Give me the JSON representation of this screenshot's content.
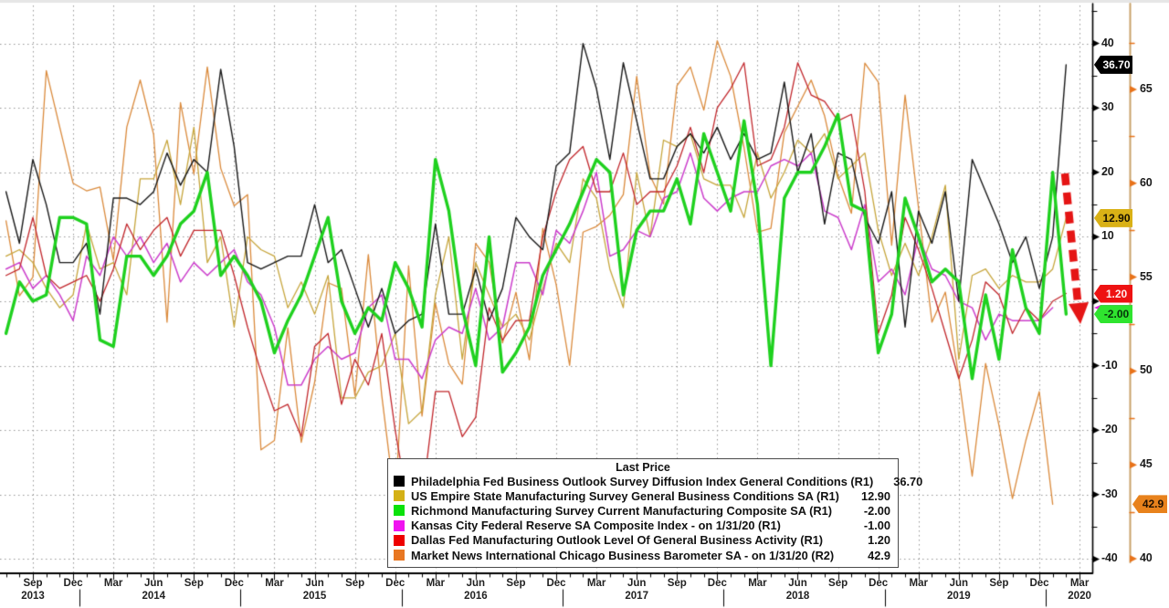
{
  "chart_data": {
    "type": "line",
    "x_start_month": "2013-07",
    "x_tick_labels": [
      "Sep",
      "Dec",
      "Mar",
      "Jun",
      "Sep",
      "Dec",
      "Mar",
      "Jun",
      "Sep",
      "Dec",
      "Mar",
      "Jun",
      "Sep",
      "Dec",
      "Mar",
      "Jun",
      "Sep",
      "Dec",
      "Mar",
      "Jun",
      "Sep",
      "Dec",
      "Mar",
      "Jun",
      "Sep",
      "Dec",
      "Mar"
    ],
    "year_labels": [
      {
        "label": "2013",
        "tick_index": 0
      },
      {
        "label": "2014",
        "tick_index": 3
      },
      {
        "label": "2015",
        "tick_index": 7
      },
      {
        "label": "2016",
        "tick_index": 11
      },
      {
        "label": "2017",
        "tick_index": 15
      },
      {
        "label": "2018",
        "tick_index": 19
      },
      {
        "label": "2019",
        "tick_index": 23
      },
      {
        "label": "2020",
        "tick_index": 26
      }
    ],
    "year_separator_tick_indices": [
      1,
      5,
      9,
      13,
      17,
      21,
      25
    ],
    "axis_r1": {
      "side": "right",
      "ticks": [
        40,
        30,
        20,
        10,
        -10,
        -20,
        -30,
        -40
      ],
      "minor_step": 5,
      "range": [
        -45,
        46
      ],
      "grid_values": [
        40,
        30,
        20,
        10,
        0,
        -10,
        -20,
        -30,
        -40
      ]
    },
    "axis_r2": {
      "side": "far-right",
      "ticks": [
        65,
        60,
        55,
        50,
        45,
        40
      ],
      "minor_step": 2.5,
      "range": [
        40,
        69.7
      ],
      "tick_color": "#e8731a",
      "line_color": "#c9a36b"
    },
    "legend": {
      "title": "Last Price",
      "entries": [
        {
          "label": "Philadelphia Fed Business Outlook Survey Diffusion Index General Conditions  (R1)",
          "value": "36.70",
          "swatch": "#000000"
        },
        {
          "label": "US Empire State Manufacturing Survey General Business Conditions SA  (R1)",
          "value": "12.90",
          "swatch": "#d4b116"
        },
        {
          "label": "Richmond Manufacturing Survey Current Manufacturing Composite SA  (R1)",
          "value": "-2.00",
          "swatch": "#0ae20a"
        },
        {
          "label": "Kansas City Federal Reserve SA Composite Index -  on 1/31/20  (R1)",
          "value": "-1.00",
          "swatch": "#f012f0"
        },
        {
          "label": "Dallas Fed Manufacturing Outlook Level Of General Business Activity  (R1)",
          "value": "1.20",
          "swatch": "#ee0000"
        },
        {
          "label": "Market News International Chicago Business Barometer SA -  on 1/31/20  (R2)",
          "value": "42.9",
          "swatch": "#e87722"
        }
      ]
    },
    "price_tags": [
      {
        "text": "36.70",
        "value": 36.7,
        "axis": "R1",
        "bg": "#000000",
        "fg": "#ffffff"
      },
      {
        "text": "12.90",
        "value": 12.9,
        "axis": "R1",
        "bg": "#d9b116",
        "fg": "#171000"
      },
      {
        "text": "1.20",
        "value": 1.2,
        "axis": "R1",
        "bg": "#ee1212",
        "fg": "#ffecec"
      },
      {
        "text": "",
        "value": -1.0,
        "axis": "R1",
        "bg": "#e428e4",
        "fg": "#ffffff",
        "strip": true
      },
      {
        "text": "-2.00",
        "value": -2.0,
        "axis": "R1",
        "bg": "#2fe42f",
        "fg": "#06340a"
      },
      {
        "text": "42.9",
        "value": 42.9,
        "axis": "R2",
        "bg": "#e8821c",
        "fg": "#201000"
      }
    ],
    "annotation_arrow": {
      "color": "#e51515",
      "style": "dashed",
      "from_xy": [
        1166,
        190
      ],
      "to_xy": [
        1183,
        355
      ],
      "meaning": "sharp drop expected"
    },
    "series": [
      {
        "name": "Philadelphia Fed Business Outlook (R1)",
        "color": "#1a1a1a",
        "width": 1.4,
        "axis": "R1",
        "last": 36.7,
        "values": [
          17,
          9,
          22,
          15,
          6,
          6,
          9,
          -2,
          16,
          16,
          15,
          17,
          23,
          18,
          22,
          20,
          36,
          24,
          6,
          5,
          6,
          7,
          7,
          15,
          6,
          8,
          2,
          -4,
          2,
          -5,
          -3,
          -2,
          12,
          -2,
          -2,
          5,
          -3,
          2,
          13,
          10,
          8,
          21,
          23,
          40,
          33,
          22,
          37,
          28,
          19,
          19,
          24,
          26,
          23,
          27,
          22,
          26,
          22,
          23,
          34,
          20,
          26,
          12,
          23,
          22,
          13,
          9,
          17,
          -4,
          14,
          9,
          17,
          0,
          22,
          17,
          12,
          6,
          10,
          2,
          10,
          36.7,
          null
        ]
      },
      {
        "name": "US Empire State Manufacturing (R1)",
        "color": "#c7a63d",
        "width": 1.3,
        "axis": "R1",
        "last": 12.9,
        "values": [
          7,
          8,
          6,
          2,
          -1,
          1,
          12,
          5,
          6,
          1,
          19,
          19,
          25,
          15,
          27,
          6,
          10,
          -4,
          10,
          8,
          7,
          -1,
          3,
          -2,
          4,
          -15,
          -15,
          -11,
          -10,
          -5,
          -19,
          -17,
          1,
          10,
          -9,
          6,
          1,
          -4,
          -2,
          -6,
          2,
          9,
          6,
          19,
          16,
          5,
          -1,
          20,
          10,
          25,
          24,
          26,
          19,
          18,
          18,
          13,
          23,
          16,
          20,
          25,
          23,
          26,
          19,
          21,
          23,
          11,
          4,
          9,
          4,
          10,
          18,
          -9,
          4,
          5,
          2,
          4,
          3,
          3,
          5,
          12.9,
          null
        ]
      },
      {
        "name": "Kansas City Federal Reserve (R1)",
        "color": "#cc3fcc",
        "width": 1.5,
        "axis": "R1",
        "last": -1.0,
        "values": [
          5,
          6,
          2,
          4,
          1,
          -3,
          7,
          4,
          10,
          7,
          10,
          6,
          9,
          3,
          6,
          4,
          6,
          8,
          3,
          1,
          -4,
          -13,
          -13,
          -9,
          -7,
          -9,
          -8,
          -1,
          1,
          -9,
          -9,
          -12,
          -6,
          -4,
          -5,
          2,
          -6,
          -4,
          6,
          6,
          1,
          11,
          9,
          14,
          20,
          7,
          8,
          11,
          10,
          16,
          17,
          23,
          16,
          14,
          16,
          17,
          17,
          21,
          22,
          21,
          23,
          14,
          13,
          8,
          15,
          3,
          5,
          1,
          10,
          5,
          4,
          0,
          -1,
          -6,
          -2,
          -3,
          -3,
          -3,
          -1,
          null,
          null
        ]
      },
      {
        "name": "Dallas Fed Manufacturing Outlook (R1)",
        "color": "#c2282d",
        "width": 1.3,
        "axis": "R1",
        "last": 1.2,
        "values": [
          4,
          5,
          13,
          4,
          2,
          3,
          4,
          0,
          5,
          12,
          8,
          11,
          13,
          7,
          11,
          11,
          11,
          4,
          -4,
          -11,
          -17,
          -16,
          -21,
          -7,
          -5,
          -16,
          -9,
          -13,
          -5,
          -20,
          -32,
          -31,
          -14,
          -14,
          -21,
          -18,
          -1,
          -6,
          -3,
          -3,
          10,
          17,
          22,
          24,
          17,
          17,
          23,
          15,
          17,
          17,
          21,
          27,
          20,
          30,
          33,
          37,
          21,
          22,
          27,
          37,
          32,
          31,
          28,
          29,
          17,
          -5,
          1,
          13,
          8,
          2,
          -5,
          -12,
          -6,
          3,
          1,
          -5,
          -1,
          -3,
          0,
          1.2,
          null
        ]
      },
      {
        "name": "MNI Chicago Business Barometer (R2)",
        "color": "#db8b3d",
        "width": 1.3,
        "axis": "R2",
        "last": 42.9,
        "values": [
          58,
          54,
          55,
          66,
          63,
          60,
          59.6,
          59.8,
          55.9,
          63,
          65.5,
          62.6,
          52.6,
          64.3,
          60.5,
          66.2,
          60.8,
          58.8,
          59.4,
          45.8,
          46.3,
          52.3,
          46.2,
          49.4,
          54.7,
          54.4,
          48.7,
          56.2,
          48.7,
          42.9,
          55.6,
          47.6,
          53.6,
          50.4,
          49.3,
          56.8,
          55.8,
          51.5,
          54.2,
          50.6,
          57.6,
          54.6,
          50.3,
          57.4,
          57.7,
          58.3,
          59.4,
          65.7,
          60.4,
          58.9,
          65.2,
          66.2,
          63.9,
          67.6,
          65.7,
          61.9,
          57.4,
          57.6,
          62.7,
          64.1,
          65.5,
          63.6,
          60.4,
          58.4,
          66.4,
          65.4,
          56.7,
          64.7,
          58.7,
          52.6,
          54.2,
          49.7,
          44.4,
          50.4,
          47.1,
          43.2,
          46.3,
          48.9,
          42.9,
          null,
          null
        ]
      },
      {
        "name": "Richmond Manufacturing Survey (R1)",
        "color": "#1fd11f",
        "width": 3.4,
        "axis": "R1",
        "last": -2.0,
        "values": [
          -5,
          3,
          0,
          1,
          13,
          13,
          12,
          -6,
          -7,
          7,
          7,
          4,
          7,
          12,
          14,
          20,
          4,
          7,
          4,
          0,
          -8,
          -3,
          1,
          7,
          13,
          0,
          -5,
          -1,
          -3,
          6,
          2,
          -4,
          22,
          14,
          -1,
          -10,
          10,
          -11,
          -8,
          -4,
          4,
          8,
          12,
          17,
          22,
          20,
          1,
          11,
          14,
          14,
          19,
          12,
          26,
          20,
          14,
          28,
          15,
          -10,
          16,
          20,
          20,
          24,
          29,
          15,
          14,
          -8,
          -2,
          16,
          10,
          3,
          5,
          3,
          -12,
          1,
          -9,
          8,
          -1,
          -5,
          20,
          -2,
          null
        ]
      }
    ]
  }
}
